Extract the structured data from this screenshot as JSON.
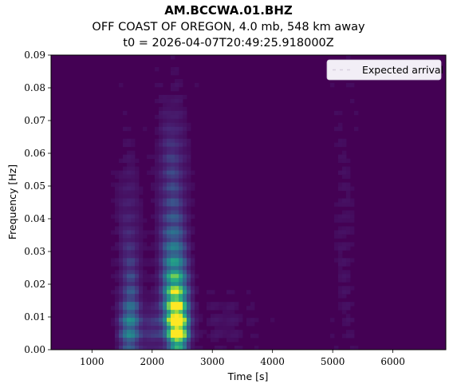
{
  "chart_data": {
    "type": "heatmap",
    "title": "AM.BCCWA.01.BHZ",
    "subtitle": "OFF COAST OF OREGON, 4.0 mb, 548 km away",
    "subtitle2": "t0 = 2026-04-07T20:49:25.918000Z",
    "xlabel": "Time [s]",
    "ylabel": "Frequency [Hz]",
    "xlim": [
      320,
      6880
    ],
    "ylim": [
      0,
      0.09
    ],
    "xticks": [
      1000,
      2000,
      3000,
      4000,
      5000,
      6000
    ],
    "xtick_labels": [
      "1000",
      "2000",
      "3000",
      "4000",
      "5000",
      "6000"
    ],
    "yticks": [
      0,
      0.01,
      0.02,
      0.03,
      0.04,
      0.05,
      0.06,
      0.07,
      0.08,
      0.09
    ],
    "ytick_labels": [
      "0.00",
      "0.01",
      "0.02",
      "0.03",
      "0.04",
      "0.05",
      "0.06",
      "0.07",
      "0.08",
      "0.09"
    ],
    "colormap": "viridis",
    "legend": {
      "position": "top-right",
      "entries": [
        "Expected arrival"
      ]
    },
    "energy_blobs": [
      {
        "t": 2430,
        "f": 0.005,
        "dt": 110,
        "df": 0.004,
        "amp": 1.0
      },
      {
        "t": 2400,
        "f": 0.01,
        "dt": 120,
        "df": 0.005,
        "amp": 0.75
      },
      {
        "t": 2390,
        "f": 0.017,
        "dt": 130,
        "df": 0.006,
        "amp": 0.55
      },
      {
        "t": 2370,
        "f": 0.026,
        "dt": 140,
        "df": 0.009,
        "amp": 0.32
      },
      {
        "t": 2340,
        "f": 0.04,
        "dt": 150,
        "df": 0.015,
        "amp": 0.18
      },
      {
        "t": 2330,
        "f": 0.06,
        "dt": 150,
        "df": 0.012,
        "amp": 0.11
      },
      {
        "t": 1620,
        "f": 0.006,
        "dt": 110,
        "df": 0.006,
        "amp": 0.42
      },
      {
        "t": 1650,
        "f": 0.018,
        "dt": 110,
        "df": 0.01,
        "amp": 0.2
      },
      {
        "t": 1600,
        "f": 0.04,
        "dt": 130,
        "df": 0.014,
        "amp": 0.1
      },
      {
        "t": 2000,
        "f": 0.006,
        "dt": 140,
        "df": 0.005,
        "amp": 0.18
      },
      {
        "t": 5200,
        "f": 0.03,
        "dt": 120,
        "df": 0.03,
        "amp": 0.04
      },
      {
        "t": 3200,
        "f": 0.008,
        "dt": 300,
        "df": 0.006,
        "amp": 0.05
      }
    ]
  },
  "colors": {
    "viridis_low": "#440154",
    "viridis_high": "#fde725",
    "legend_bg": "#f2eef6"
  }
}
